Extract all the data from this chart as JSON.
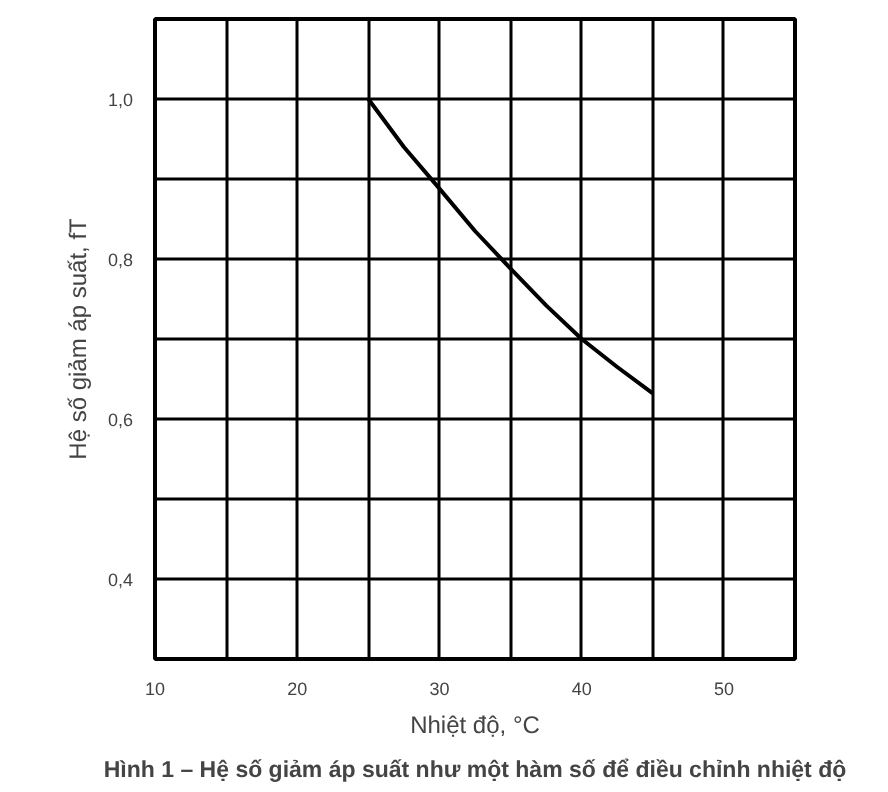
{
  "chart_data": {
    "type": "line",
    "title": "Hình 1 – Hệ số giảm áp suất như một hàm số để điều chỉnh nhiệt độ",
    "xlabel": "Nhiệt độ, °C",
    "ylabel": "Hệ số giảm áp suất, fT",
    "x": [
      25,
      27.5,
      30,
      32.5,
      35,
      37.5,
      40,
      42.5,
      45
    ],
    "series": [
      {
        "color": "#000000",
        "values": [
          1.0,
          0.94,
          0.888,
          0.835,
          0.788,
          0.742,
          0.7,
          0.665,
          0.632
        ]
      }
    ],
    "xlim": [
      10,
      55
    ],
    "xticks": [
      10,
      20,
      30,
      40,
      50
    ],
    "ylim": [
      0.3,
      1.1
    ],
    "yticks": [
      {
        "value": 0.4,
        "label": "0,4"
      },
      {
        "value": 0.6,
        "label": "0,6"
      },
      {
        "value": 0.8,
        "label": "0,8"
      },
      {
        "value": 1.0,
        "label": "1,0"
      }
    ],
    "grid": true,
    "marker": "none",
    "line_style": "solid"
  }
}
